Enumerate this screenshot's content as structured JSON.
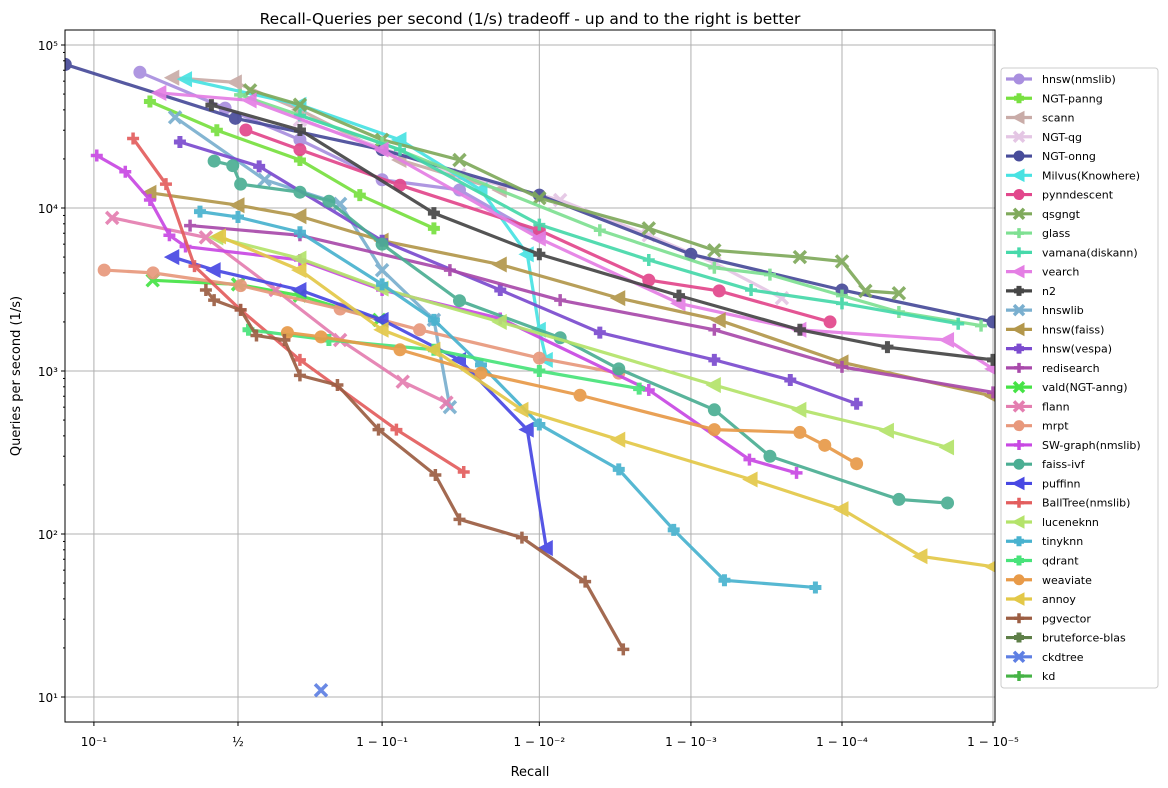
{
  "chart_data": {
    "type": "line",
    "title": "Recall-Queries per second (1/s) tradeoff - up and to the right is better",
    "xlabel": "Recall",
    "ylabel": "Queries per second (1/s)",
    "xscale": "logit",
    "yscale": "log",
    "xlim": [
      0.067,
      0.99999
    ],
    "ylim": [
      7,
      120000
    ],
    "grid": true,
    "legend_placement": "right-outside",
    "xticks": [
      {
        "value": 0.1,
        "label": "10⁻¹"
      },
      {
        "value": 0.5,
        "label": "½"
      },
      {
        "value": 0.9,
        "label": "1 − 10⁻¹"
      },
      {
        "value": 0.99,
        "label": "1 − 10⁻²"
      },
      {
        "value": 0.999,
        "label": "1 − 10⁻³"
      },
      {
        "value": 0.9999,
        "label": "1 − 10⁻⁴"
      },
      {
        "value": 0.99999,
        "label": "1 − 10⁻⁵"
      }
    ],
    "yticks": [
      {
        "value": 10,
        "label": "10¹"
      },
      {
        "value": 100,
        "label": "10²"
      },
      {
        "value": 1000,
        "label": "10³"
      },
      {
        "value": 10000,
        "label": "10⁴"
      },
      {
        "value": 100000,
        "label": "10⁵"
      }
    ],
    "series": [
      {
        "name": "hnsw(nmslib)",
        "color": "#a98fdf",
        "marker": "circle",
        "points": [
          [
            0.183,
            68000
          ],
          [
            0.451,
            41000
          ],
          [
            0.72,
            26200
          ],
          [
            0.9,
            14900
          ],
          [
            0.967,
            12900
          ],
          [
            0.99,
            6800
          ]
        ]
      },
      {
        "name": "NGT-panng",
        "color": "#78e040",
        "marker": "P",
        "points": [
          [
            0.207,
            45000
          ],
          [
            0.42,
            30000
          ],
          [
            0.72,
            19700
          ],
          [
            0.865,
            12000
          ],
          [
            0.952,
            7500
          ]
        ]
      },
      {
        "name": "scann",
        "color": "#c9aca8",
        "marker": "tri",
        "points": [
          [
            0.27,
            63000
          ],
          [
            0.49,
            59000
          ],
          [
            0.72,
            40000
          ],
          [
            0.922,
            19700
          ],
          [
            0.982,
            12900
          ]
        ]
      },
      {
        "name": "NGT-qg",
        "color": "#e4c6e4",
        "marker": "x",
        "points": [
          [
            0.72,
            34700
          ],
          [
            0.967,
            16000
          ],
          [
            0.9927,
            11200
          ],
          [
            0.9981,
            6800
          ],
          [
            0.9993,
            4600
          ],
          [
            0.99975,
            2800
          ]
        ]
      },
      {
        "name": "NGT-onng",
        "color": "#484c9a",
        "marker": "circle",
        "points": [
          [
            0.067,
            76000
          ],
          [
            0.49,
            35500
          ],
          [
            0.9,
            22800
          ],
          [
            0.99,
            12000
          ],
          [
            0.999,
            5200
          ],
          [
            0.9999,
            3140
          ],
          [
            0.99999,
            2000
          ]
        ]
      },
      {
        "name": "Milvus(Knowhere)",
        "color": "#48e2e2",
        "marker": "tri",
        "points": [
          [
            0.31,
            61700
          ],
          [
            0.72,
            43000
          ],
          [
            0.922,
            26200
          ],
          [
            0.976,
            12900
          ],
          [
            0.988,
            5200
          ],
          [
            0.99,
            1790
          ],
          [
            0.991,
            1170
          ]
        ]
      },
      {
        "name": "pynndescent",
        "color": "#e2478c",
        "marker": "circle",
        "points": [
          [
            0.53,
            30100
          ],
          [
            0.72,
            22800
          ],
          [
            0.922,
            13800
          ],
          [
            0.99,
            7300
          ],
          [
            0.9981,
            3610
          ],
          [
            0.99935,
            3100
          ],
          [
            0.99988,
            2000
          ]
        ]
      },
      {
        "name": "qsgngt",
        "color": "#80aa5c",
        "marker": "x",
        "points": [
          [
            0.546,
            52700
          ],
          [
            0.72,
            43000
          ],
          [
            0.9,
            26200
          ],
          [
            0.967,
            19700
          ],
          [
            0.99,
            11500
          ],
          [
            0.9981,
            7500
          ],
          [
            0.9993,
            5500
          ],
          [
            0.99981,
            5000
          ],
          [
            0.9999,
            4700
          ],
          [
            0.99993,
            3100
          ],
          [
            0.999958,
            3000
          ]
        ]
      },
      {
        "name": "glass",
        "color": "#7ee092",
        "marker": "plus",
        "points": [
          [
            0.508,
            49400
          ],
          [
            0.9,
            25000
          ],
          [
            0.996,
            7300
          ],
          [
            0.9993,
            4300
          ],
          [
            0.9997,
            3900
          ],
          [
            0.9999,
            2900
          ],
          [
            0.999958,
            2300
          ],
          [
            0.999988,
            1900
          ]
        ]
      },
      {
        "name": "vamana(diskann)",
        "color": "#46d9aa",
        "marker": "plus",
        "points": [
          [
            0.72,
            37000
          ],
          [
            0.922,
            22800
          ],
          [
            0.99,
            7900
          ],
          [
            0.9981,
            4800
          ],
          [
            0.9996,
            3140
          ],
          [
            0.9999,
            2600
          ],
          [
            0.999983,
            1950
          ]
        ]
      },
      {
        "name": "vearch",
        "color": "#e47ee4",
        "marker": "tri",
        "points": [
          [
            0.233,
            50800
          ],
          [
            0.546,
            45700
          ],
          [
            0.9,
            22800
          ],
          [
            0.99,
            6500
          ],
          [
            0.9988,
            2600
          ],
          [
            0.99981,
            1790
          ],
          [
            0.99998,
            1550
          ],
          [
            0.99999,
            1030
          ]
        ]
      },
      {
        "name": "n2",
        "color": "#464646",
        "marker": "P",
        "points": [
          [
            0.4,
            42800
          ],
          [
            0.72,
            30100
          ],
          [
            0.952,
            9300
          ],
          [
            0.99,
            5200
          ],
          [
            0.9988,
            2900
          ],
          [
            0.99981,
            1790
          ],
          [
            0.99995,
            1400
          ],
          [
            0.99999,
            1170
          ]
        ]
      },
      {
        "name": "hnswlib",
        "color": "#7aafcf",
        "marker": "x",
        "points": [
          [
            0.277,
            36000
          ],
          [
            0.6,
            14900
          ],
          [
            0.826,
            10600
          ],
          [
            0.9,
            4160
          ],
          [
            0.952,
            2060
          ],
          [
            0.962,
            600
          ]
        ]
      },
      {
        "name": "hnsw(faiss)",
        "color": "#b3974b",
        "marker": "tri",
        "points": [
          [
            0.207,
            12400
          ],
          [
            0.5,
            10400
          ],
          [
            0.72,
            8900
          ],
          [
            0.9,
            6300
          ],
          [
            0.982,
            4500
          ],
          [
            0.997,
            2800
          ],
          [
            0.99935,
            2050
          ],
          [
            0.9999,
            1130
          ],
          [
            0.99999,
            700
          ]
        ]
      },
      {
        "name": "hnsw(vespa)",
        "color": "#7b4bcf",
        "marker": "P",
        "points": [
          [
            0.292,
            25400
          ],
          [
            0.58,
            18000
          ],
          [
            0.9,
            6300
          ],
          [
            0.982,
            3140
          ],
          [
            0.996,
            1720
          ],
          [
            0.9993,
            1170
          ],
          [
            0.99978,
            880
          ],
          [
            0.99992,
            630
          ]
        ]
      },
      {
        "name": "redisearch",
        "color": "#a94aab",
        "marker": "plus",
        "points": [
          [
            0.325,
            7800
          ],
          [
            0.72,
            6800
          ],
          [
            0.962,
            4160
          ],
          [
            0.9927,
            2720
          ],
          [
            0.9993,
            1790
          ],
          [
            0.9999,
            1060
          ],
          [
            0.99999,
            740
          ]
        ]
      },
      {
        "name": "vald(NGT-anng)",
        "color": "#46e346",
        "marker": "x",
        "points": [
          [
            0.214,
            3600
          ],
          [
            0.5,
            3400
          ],
          [
            0.72,
            2900
          ],
          [
            0.896,
            2060
          ]
        ]
      },
      {
        "name": "flann",
        "color": "#e47eb0",
        "marker": "x",
        "points": [
          [
            0.128,
            8700
          ],
          [
            0.38,
            6600
          ],
          [
            0.64,
            3140
          ],
          [
            0.826,
            1550
          ],
          [
            0.925,
            860
          ],
          [
            0.96,
            640
          ]
        ]
      },
      {
        "name": "mrpt",
        "color": "#e8987c",
        "marker": "circle",
        "points": [
          [
            0.115,
            4160
          ],
          [
            0.215,
            4000
          ],
          [
            0.51,
            3340
          ],
          [
            0.826,
            2400
          ],
          [
            0.941,
            1790
          ],
          [
            0.99,
            1200
          ],
          [
            0.997,
            970
          ]
        ]
      },
      {
        "name": "SW-graph(nmslib)",
        "color": "#c848e3",
        "marker": "plus",
        "points": [
          [
            0.104,
            21000
          ],
          [
            0.152,
            16700
          ],
          [
            0.207,
            11200
          ],
          [
            0.26,
            6800
          ],
          [
            0.31,
            5800
          ],
          [
            0.72,
            4800
          ],
          [
            0.9,
            3140
          ],
          [
            0.982,
            2100
          ],
          [
            0.9981,
            765
          ],
          [
            0.99959,
            286
          ],
          [
            0.9998,
            237
          ]
        ]
      },
      {
        "name": "faiss-ivf",
        "color": "#4bae93",
        "marker": "circle",
        "points": [
          [
            0.41,
            19400
          ],
          [
            0.48,
            18200
          ],
          [
            0.51,
            14000
          ],
          [
            0.72,
            12500
          ],
          [
            0.8,
            11000
          ],
          [
            0.9,
            6000
          ],
          [
            0.967,
            2700
          ],
          [
            0.9927,
            1600
          ],
          [
            0.997,
            1030
          ],
          [
            0.9993,
            578
          ],
          [
            0.9997,
            300
          ],
          [
            0.999958,
            163
          ],
          [
            0.99998,
            155
          ]
        ]
      },
      {
        "name": "puffinn",
        "color": "#4848e3",
        "marker": "tri",
        "points": [
          [
            0.27,
            5000
          ],
          [
            0.41,
            4160
          ],
          [
            0.72,
            3140
          ],
          [
            0.9,
            2060
          ],
          [
            0.967,
            1170
          ],
          [
            0.988,
            437
          ],
          [
            0.991,
            82
          ]
        ]
      },
      {
        "name": "BallTree(nmslib)",
        "color": "#e35e5e",
        "marker": "plus",
        "points": [
          [
            0.168,
            26700
          ],
          [
            0.25,
            14000
          ],
          [
            0.34,
            4400
          ],
          [
            0.51,
            2370
          ],
          [
            0.72,
            1170
          ],
          [
            0.918,
            437
          ],
          [
            0.969,
            240
          ]
        ]
      },
      {
        "name": "luceneknn",
        "color": "#b4e36a",
        "marker": "tri",
        "points": [
          [
            0.42,
            6600
          ],
          [
            0.72,
            4900
          ],
          [
            0.9,
            3200
          ],
          [
            0.982,
            2000
          ],
          [
            0.9993,
            820
          ],
          [
            0.99981,
            578
          ],
          [
            0.99995,
            430
          ],
          [
            0.99998,
            340
          ]
        ]
      },
      {
        "name": "tinyknn",
        "color": "#48b2cf",
        "marker": "P",
        "points": [
          [
            0.359,
            9500
          ],
          [
            0.5,
            8800
          ],
          [
            0.72,
            7100
          ],
          [
            0.9,
            3400
          ],
          [
            0.952,
            2060
          ],
          [
            0.976,
            1090
          ],
          [
            0.99,
            470
          ],
          [
            0.997,
            249
          ],
          [
            0.9987,
            106
          ],
          [
            0.9994,
            52
          ],
          [
            0.99985,
            47
          ]
        ]
      },
      {
        "name": "qdrant",
        "color": "#48e37a",
        "marker": "P",
        "points": [
          [
            0.54,
            1790
          ],
          [
            0.8,
            1550
          ],
          [
            0.952,
            1350
          ],
          [
            0.99,
            1000
          ],
          [
            0.9978,
            780
          ]
        ]
      },
      {
        "name": "weaviate",
        "color": "#e89a48",
        "marker": "circle",
        "points": [
          [
            0.68,
            1720
          ],
          [
            0.78,
            1620
          ],
          [
            0.922,
            1350
          ],
          [
            0.976,
            970
          ],
          [
            0.9946,
            710
          ],
          [
            0.9993,
            437
          ],
          [
            0.99981,
            420
          ],
          [
            0.99987,
            350
          ],
          [
            0.99992,
            270
          ]
        ]
      },
      {
        "name": "annoy",
        "color": "#e3c848",
        "marker": "tri",
        "points": [
          [
            0.43,
            6700
          ],
          [
            0.72,
            4160
          ],
          [
            0.9,
            1790
          ],
          [
            0.952,
            1350
          ],
          [
            0.987,
            578
          ],
          [
            0.997,
            379
          ],
          [
            0.9996,
            216
          ],
          [
            0.9999,
            142
          ],
          [
            0.99997,
            73
          ],
          [
            0.99999,
            63
          ]
        ]
      },
      {
        "name": "pgvector",
        "color": "#9c5e43",
        "marker": "plus",
        "points": [
          [
            0.38,
            3140
          ],
          [
            0.41,
            2720
          ],
          [
            0.51,
            2370
          ],
          [
            0.57,
            1650
          ],
          [
            0.67,
            1550
          ],
          [
            0.72,
            940
          ],
          [
            0.82,
            820
          ],
          [
            0.895,
            437
          ],
          [
            0.953,
            230
          ],
          [
            0.967,
            123
          ],
          [
            0.987,
            95
          ],
          [
            0.995,
            51
          ],
          [
            0.9972,
            19.6
          ]
        ]
      },
      {
        "name": "bruteforce-blas",
        "color": "#5e7f48",
        "marker": "P",
        "points": []
      },
      {
        "name": "ckdtree",
        "color": "#5e7fe3",
        "marker": "x",
        "points": [
          [
            0.78,
            11
          ]
        ]
      },
      {
        "name": "kd",
        "color": "#46b346",
        "marker": "plus",
        "points": []
      }
    ]
  }
}
